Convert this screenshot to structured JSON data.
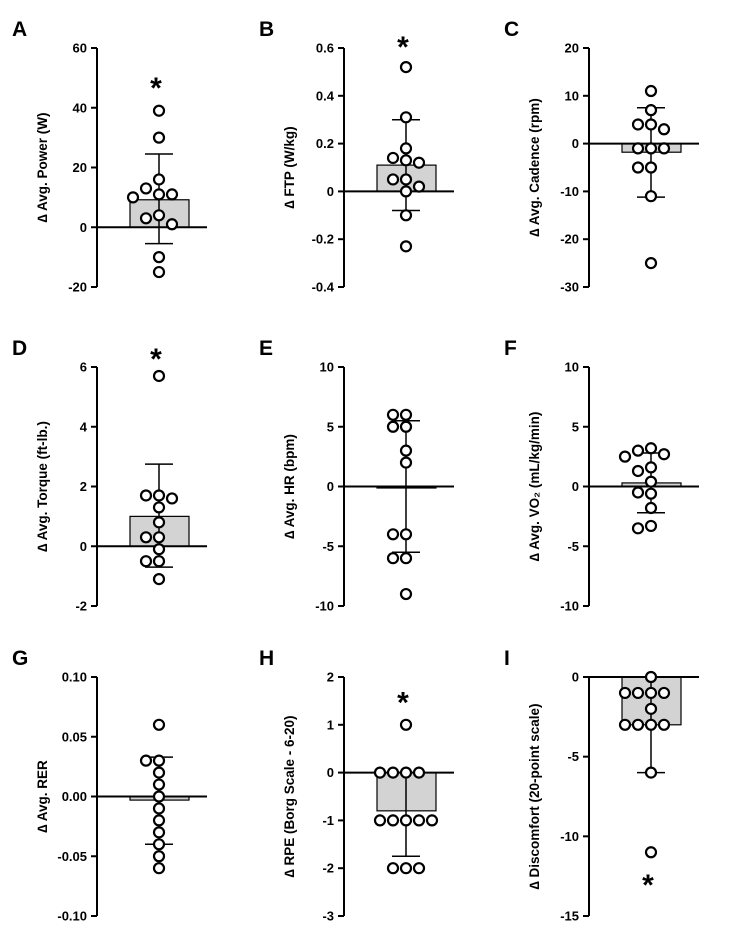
{
  "chart_data": [
    {
      "type": "bar",
      "panel": "A",
      "ylabel": "∆ Avg. Power (W)",
      "ylim": [
        -20,
        60
      ],
      "yticks": [
        -20,
        0,
        20,
        40,
        60
      ],
      "mean": 9.2,
      "sd_upper": 24.5,
      "sd_lower": -5.5,
      "points": [
        39,
        30,
        16,
        13,
        11,
        11,
        10,
        4,
        3,
        1,
        -10,
        -15
      ],
      "annotation": "*",
      "annotation_y": 48
    },
    {
      "type": "bar",
      "panel": "B",
      "ylabel": "∆ FTP (W/kg)",
      "ylim": [
        -0.4,
        0.6
      ],
      "yticks": [
        -0.4,
        -0.2,
        0.0,
        0.2,
        0.4,
        0.6
      ],
      "mean": 0.11,
      "sd_upper": 0.3,
      "sd_lower": -0.08,
      "points": [
        0.52,
        0.31,
        0.18,
        0.14,
        0.13,
        0.12,
        0.05,
        0.05,
        0.02,
        0.0,
        -0.1,
        -0.23
      ],
      "annotation": "*",
      "annotation_y": 0.62
    },
    {
      "type": "bar",
      "panel": "C",
      "ylabel": "∆ Avg. Cadence (rpm)",
      "ylim": [
        -30,
        20
      ],
      "yticks": [
        -30,
        -20,
        -10,
        0,
        10,
        20
      ],
      "mean": -1.8,
      "sd_upper": 7.5,
      "sd_lower": -11.2,
      "points": [
        11,
        7,
        4,
        4,
        3,
        -1,
        -1,
        -1,
        -5,
        -5,
        -11,
        -25
      ]
    },
    {
      "type": "bar",
      "panel": "D",
      "ylabel": "∆ Avg. Torque (ft-lb.)",
      "ylim": [
        -2,
        6
      ],
      "yticks": [
        -2,
        0,
        2,
        4,
        6
      ],
      "mean": 1.0,
      "sd_upper": 2.75,
      "sd_lower": -0.7,
      "points": [
        5.7,
        1.7,
        1.7,
        1.6,
        1.3,
        0.8,
        0.3,
        0.3,
        -0.1,
        -0.5,
        -0.5,
        -1.1
      ],
      "annotation": "*",
      "annotation_y": 6.4
    },
    {
      "type": "bar",
      "panel": "E",
      "ylabel": "∆ Avg. HR (bpm)",
      "ylim": [
        -10,
        10
      ],
      "yticks": [
        -10,
        -5,
        0,
        5,
        10
      ],
      "mean": 0.0,
      "sd_upper": 5.5,
      "sd_lower": -5.5,
      "points": [
        6,
        6,
        5,
        5,
        3,
        2,
        -4,
        -4,
        -6,
        -6,
        -9
      ]
    },
    {
      "type": "bar",
      "panel": "F",
      "ylabel": "∆ Avg. VO₂ (mL/kg/min)",
      "ylim": [
        -10,
        10
      ],
      "yticks": [
        -10,
        -5,
        0,
        5,
        10
      ],
      "mean": 0.3,
      "sd_upper": 2.8,
      "sd_lower": -2.2,
      "points": [
        3.2,
        3.0,
        2.7,
        2.5,
        1.6,
        1.3,
        0.4,
        -0.5,
        -0.6,
        -1.8,
        -3.3,
        -3.5
      ]
    },
    {
      "type": "bar",
      "panel": "G",
      "ylabel": "∆ Avg. RER",
      "ylim": [
        -0.1,
        0.1
      ],
      "yticks": [
        -0.1,
        -0.05,
        0.0,
        0.05,
        0.1
      ],
      "tick_labels": [
        "-0.10",
        "-0.05",
        "0.00",
        "0.05",
        "0.10"
      ],
      "mean": -0.003,
      "sd_upper": 0.033,
      "sd_lower": -0.04,
      "points": [
        0.06,
        0.03,
        0.03,
        0.02,
        0.01,
        0.0,
        -0.01,
        -0.02,
        -0.03,
        -0.04,
        -0.05,
        -0.06
      ]
    },
    {
      "type": "bar",
      "panel": "H",
      "ylabel": "∆ RPE (Borg Scale - 6-20)",
      "ylim": [
        -3,
        2
      ],
      "yticks": [
        -3,
        -2,
        -1,
        0,
        1,
        2
      ],
      "mean": -0.8,
      "sd_upper": 0.0,
      "sd_lower": -1.75,
      "points": [
        1,
        0,
        0,
        0,
        0,
        -1,
        -1,
        -1,
        -1,
        -1,
        -2,
        -2,
        -2
      ],
      "annotation": "*",
      "annotation_y": 1.55
    },
    {
      "type": "bar",
      "panel": "I",
      "ylabel": "∆ Discomfort (20-point scale)",
      "ylim": [
        -15,
        0
      ],
      "yticks": [
        -15,
        -10,
        -5,
        0
      ],
      "mean": -3.0,
      "sd_upper": 0.0,
      "sd_lower": -6.0,
      "points": [
        0,
        -1,
        -1,
        -1,
        -1,
        -2,
        -3,
        -3,
        -3,
        -3,
        -6,
        -11
      ],
      "annotation": "*",
      "annotation_y": -12.8
    }
  ]
}
